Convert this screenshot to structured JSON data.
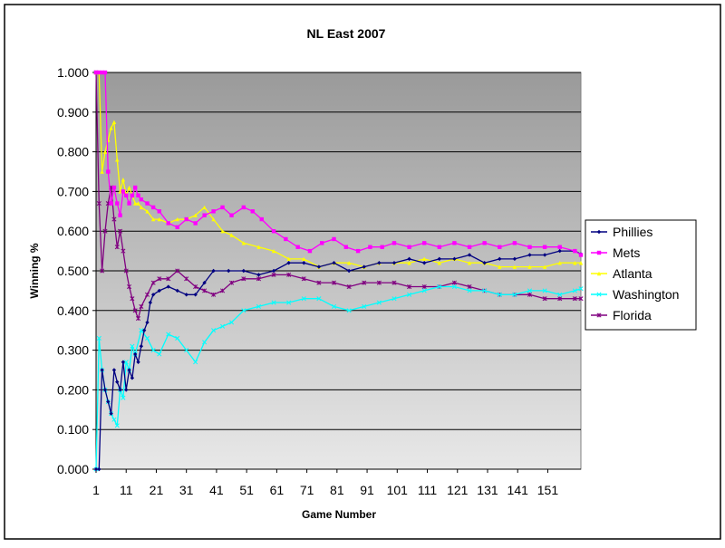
{
  "chart_data": {
    "type": "line",
    "title": "NL East 2007",
    "xlabel": "Game Number",
    "ylabel": "Winning %",
    "xlim": [
      1,
      162
    ],
    "ylim": [
      0,
      1
    ],
    "y_ticks": [
      "0.000",
      "0.100",
      "0.200",
      "0.300",
      "0.400",
      "0.500",
      "0.600",
      "0.700",
      "0.800",
      "0.900",
      "1.000"
    ],
    "x_ticks": [
      "1",
      "11",
      "21",
      "31",
      "41",
      "51",
      "61",
      "71",
      "81",
      "91",
      "101",
      "111",
      "121",
      "131",
      "141",
      "151"
    ],
    "legend_position": "right",
    "grid": true,
    "plot_background": "gray-gradient",
    "series": [
      {
        "name": "Phillies",
        "color": "#000080",
        "marker": "diamond",
        "x": [
          1,
          2,
          3,
          4,
          5,
          6,
          7,
          8,
          9,
          10,
          11,
          12,
          13,
          14,
          15,
          16,
          17,
          18,
          19,
          20,
          22,
          25,
          28,
          31,
          34,
          37,
          40,
          45,
          50,
          55,
          60,
          65,
          70,
          75,
          80,
          85,
          90,
          95,
          100,
          105,
          110,
          115,
          120,
          125,
          130,
          135,
          140,
          145,
          150,
          155,
          160,
          162
        ],
        "y": [
          0,
          0,
          0.25,
          0.2,
          0.17,
          0.14,
          0.25,
          0.22,
          0.2,
          0.27,
          0.2,
          0.25,
          0.23,
          0.29,
          0.27,
          0.31,
          0.35,
          0.37,
          0.42,
          0.44,
          0.45,
          0.46,
          0.45,
          0.44,
          0.44,
          0.47,
          0.5,
          0.5,
          0.5,
          0.49,
          0.5,
          0.52,
          0.52,
          0.51,
          0.52,
          0.5,
          0.51,
          0.52,
          0.52,
          0.53,
          0.52,
          0.53,
          0.53,
          0.54,
          0.52,
          0.53,
          0.53,
          0.54,
          0.54,
          0.55,
          0.55,
          0.542
        ]
      },
      {
        "name": "Mets",
        "color": "#ff00ff",
        "marker": "square",
        "x": [
          1,
          2,
          3,
          4,
          5,
          6,
          7,
          8,
          9,
          10,
          11,
          12,
          13,
          14,
          15,
          16,
          18,
          20,
          22,
          25,
          28,
          31,
          34,
          37,
          40,
          43,
          46,
          50,
          53,
          56,
          60,
          64,
          68,
          72,
          76,
          80,
          84,
          88,
          92,
          96,
          100,
          105,
          110,
          115,
          120,
          125,
          130,
          135,
          140,
          145,
          150,
          155,
          160,
          162
        ],
        "y": [
          1,
          1,
          1,
          1,
          0.75,
          0.67,
          0.71,
          0.67,
          0.64,
          0.7,
          0.69,
          0.67,
          0.69,
          0.71,
          0.69,
          0.68,
          0.67,
          0.66,
          0.65,
          0.62,
          0.61,
          0.63,
          0.62,
          0.64,
          0.65,
          0.66,
          0.64,
          0.66,
          0.65,
          0.63,
          0.6,
          0.58,
          0.56,
          0.55,
          0.57,
          0.58,
          0.56,
          0.55,
          0.56,
          0.56,
          0.57,
          0.56,
          0.57,
          0.56,
          0.57,
          0.56,
          0.57,
          0.56,
          0.57,
          0.56,
          0.56,
          0.56,
          0.55,
          0.54
        ]
      },
      {
        "name": "Atlanta",
        "color": "#ffff00",
        "marker": "triangle",
        "x": [
          1,
          2,
          3,
          4,
          5,
          6,
          7,
          8,
          9,
          10,
          11,
          12,
          13,
          14,
          15,
          16,
          18,
          20,
          22,
          25,
          28,
          31,
          34,
          37,
          40,
          43,
          46,
          50,
          55,
          60,
          65,
          70,
          75,
          80,
          85,
          90,
          95,
          100,
          105,
          110,
          115,
          120,
          125,
          130,
          135,
          140,
          145,
          150,
          155,
          160,
          162
        ],
        "y": [
          1,
          1,
          0.75,
          0.8,
          0.83,
          0.86,
          0.875,
          0.78,
          0.7,
          0.73,
          0.69,
          0.71,
          0.69,
          0.67,
          0.67,
          0.66,
          0.65,
          0.63,
          0.63,
          0.62,
          0.63,
          0.63,
          0.64,
          0.66,
          0.63,
          0.6,
          0.59,
          0.57,
          0.56,
          0.55,
          0.53,
          0.53,
          0.51,
          0.52,
          0.52,
          0.51,
          0.52,
          0.52,
          0.52,
          0.53,
          0.52,
          0.53,
          0.52,
          0.52,
          0.51,
          0.51,
          0.51,
          0.51,
          0.52,
          0.52,
          0.52
        ]
      },
      {
        "name": "Washington",
        "color": "#00ffff",
        "marker": "x",
        "x": [
          1,
          2,
          3,
          4,
          5,
          6,
          7,
          8,
          9,
          10,
          11,
          12,
          13,
          14,
          16,
          18,
          20,
          22,
          25,
          28,
          31,
          34,
          37,
          40,
          43,
          46,
          50,
          55,
          60,
          65,
          70,
          75,
          80,
          85,
          90,
          95,
          100,
          105,
          110,
          115,
          120,
          125,
          130,
          135,
          140,
          145,
          150,
          155,
          160,
          162
        ],
        "y": [
          0,
          0.33,
          0.25,
          0.2,
          0.17,
          0.14,
          0.125,
          0.11,
          0.2,
          0.18,
          0.27,
          0.25,
          0.31,
          0.29,
          0.35,
          0.33,
          0.3,
          0.29,
          0.34,
          0.33,
          0.3,
          0.27,
          0.32,
          0.35,
          0.36,
          0.37,
          0.4,
          0.41,
          0.42,
          0.42,
          0.43,
          0.43,
          0.41,
          0.4,
          0.41,
          0.42,
          0.43,
          0.44,
          0.45,
          0.46,
          0.46,
          0.45,
          0.45,
          0.44,
          0.44,
          0.45,
          0.45,
          0.44,
          0.45,
          0.455
        ]
      },
      {
        "name": "Florida",
        "color": "#800080",
        "marker": "star",
        "x": [
          1,
          2,
          3,
          4,
          5,
          6,
          7,
          8,
          9,
          10,
          11,
          12,
          13,
          14,
          15,
          16,
          18,
          20,
          22,
          25,
          28,
          31,
          34,
          37,
          40,
          43,
          46,
          50,
          55,
          60,
          65,
          70,
          75,
          80,
          85,
          90,
          95,
          100,
          105,
          110,
          115,
          120,
          125,
          130,
          135,
          140,
          145,
          150,
          155,
          160,
          162
        ],
        "y": [
          1,
          0.67,
          0.5,
          0.6,
          0.67,
          0.71,
          0.63,
          0.56,
          0.6,
          0.55,
          0.5,
          0.46,
          0.43,
          0.4,
          0.38,
          0.41,
          0.44,
          0.47,
          0.48,
          0.48,
          0.5,
          0.48,
          0.46,
          0.45,
          0.44,
          0.45,
          0.47,
          0.48,
          0.48,
          0.49,
          0.49,
          0.48,
          0.47,
          0.47,
          0.46,
          0.47,
          0.47,
          0.47,
          0.46,
          0.46,
          0.46,
          0.47,
          0.46,
          0.45,
          0.44,
          0.44,
          0.44,
          0.43,
          0.43,
          0.43,
          0.43
        ]
      }
    ]
  }
}
